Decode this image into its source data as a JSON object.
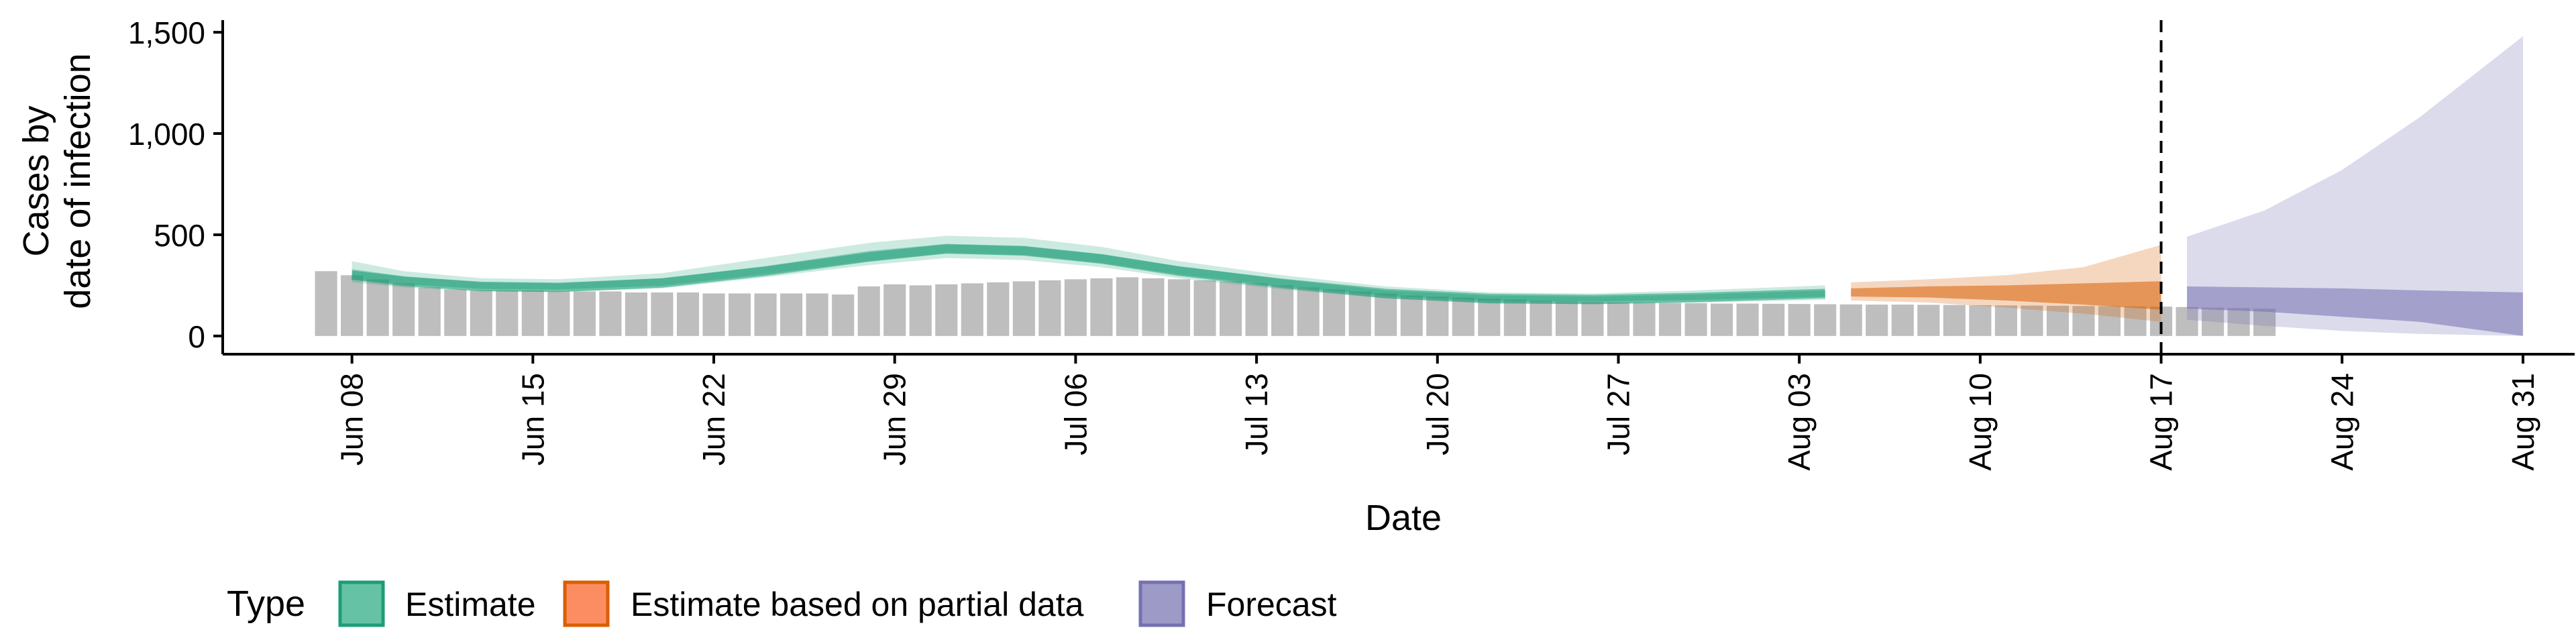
{
  "chart_data": {
    "type": "area",
    "xlabel": "Date",
    "ylabel": [
      "Cases by",
      "date of infection"
    ],
    "ylim": [
      -90,
      1560
    ],
    "yticks": [
      0,
      500,
      1000,
      1500
    ],
    "ytick_labels": [
      "0",
      "500",
      "1,000",
      "1,500"
    ],
    "xlim": [
      "2020-06-03",
      "2020-09-02"
    ],
    "xticks": [
      "2020-06-08",
      "2020-06-15",
      "2020-06-22",
      "2020-06-29",
      "2020-07-06",
      "2020-07-13",
      "2020-07-20",
      "2020-07-27",
      "2020-08-03",
      "2020-08-10",
      "2020-08-17",
      "2020-08-24",
      "2020-08-31"
    ],
    "xtick_labels": [
      "Jun 08",
      "Jun 15",
      "Jun 22",
      "Jun 29",
      "Jul 06",
      "Jul 13",
      "Jul 20",
      "Jul 27",
      "Aug 03",
      "Aug 10",
      "Aug 17",
      "Aug 24",
      "Aug 31"
    ],
    "vline_date": "2020-08-17",
    "legend": {
      "title": "Type",
      "placement": "bottom",
      "items": [
        {
          "label": "Estimate",
          "fill": "#66c2a5",
          "border": "#1b9e77"
        },
        {
          "label": "Estimate based on partial data",
          "fill": "#fc8d62",
          "border": "#d95f02"
        },
        {
          "label": "Forecast",
          "fill": "#9e9ac8",
          "border": "#7570b3"
        }
      ]
    },
    "colors": {
      "bars": "#bebebe",
      "estimate": "#1b9e77",
      "partial": "#d95f02",
      "forecast": "#7570b3",
      "axis": "#000000"
    },
    "reported_cases": {
      "start_date": "2020-06-07",
      "values": [
        320,
        300,
        280,
        260,
        240,
        230,
        225,
        225,
        225,
        220,
        220,
        220,
        215,
        215,
        215,
        210,
        210,
        210,
        210,
        210,
        205,
        245,
        255,
        250,
        255,
        260,
        265,
        270,
        275,
        280,
        285,
        290,
        285,
        280,
        275,
        270,
        260,
        250,
        240,
        230,
        220,
        210,
        200,
        195,
        190,
        185,
        180,
        175,
        170,
        168,
        166,
        165,
        163,
        162,
        160,
        160,
        159,
        158,
        157,
        156,
        155,
        155,
        154,
        153,
        152,
        151,
        150,
        149,
        148,
        147,
        146,
        145,
        143,
        140,
        138,
        135
      ]
    },
    "estimate": {
      "dates": [
        "2020-06-08",
        "2020-06-10",
        "2020-06-13",
        "2020-06-16",
        "2020-06-20",
        "2020-06-24",
        "2020-06-28",
        "2020-07-01",
        "2020-07-04",
        "2020-07-07",
        "2020-07-10",
        "2020-07-14",
        "2020-07-18",
        "2020-07-22",
        "2020-07-26",
        "2020-07-30",
        "2020-08-04"
      ],
      "median": [
        300,
        270,
        245,
        240,
        262,
        320,
        390,
        430,
        420,
        380,
        320,
        260,
        210,
        185,
        180,
        190,
        210
      ],
      "outer_lower": [
        265,
        240,
        220,
        218,
        235,
        290,
        350,
        385,
        375,
        340,
        285,
        230,
        185,
        160,
        158,
        165,
        178
      ],
      "outer_upper": [
        370,
        320,
        285,
        280,
        310,
        385,
        460,
        495,
        485,
        440,
        370,
        300,
        245,
        215,
        210,
        225,
        250
      ],
      "inner_lower": [
        280,
        255,
        233,
        230,
        248,
        305,
        370,
        410,
        400,
        360,
        303,
        245,
        198,
        172,
        170,
        178,
        194
      ],
      "inner_upper": [
        330,
        295,
        265,
        260,
        285,
        345,
        420,
        455,
        445,
        405,
        345,
        280,
        225,
        200,
        195,
        205,
        225
      ]
    },
    "partial": {
      "dates": [
        "2020-08-05",
        "2020-08-08",
        "2020-08-11",
        "2020-08-14",
        "2020-08-17"
      ],
      "outer_lower": [
        175,
        165,
        140,
        110,
        70
      ],
      "outer_upper": [
        265,
        280,
        300,
        340,
        450
      ],
      "inner_lower": [
        195,
        190,
        175,
        155,
        130
      ],
      "inner_upper": [
        235,
        245,
        250,
        260,
        270
      ]
    },
    "forecast": {
      "dates": [
        "2020-08-18",
        "2020-08-21",
        "2020-08-24",
        "2020-08-27",
        "2020-08-31"
      ],
      "outer_lower": [
        80,
        50,
        25,
        10,
        0
      ],
      "outer_upper": [
        490,
        620,
        820,
        1080,
        1480
      ],
      "inner_lower": [
        135,
        120,
        95,
        70,
        0
      ],
      "inner_upper": [
        245,
        240,
        235,
        225,
        215
      ]
    }
  }
}
